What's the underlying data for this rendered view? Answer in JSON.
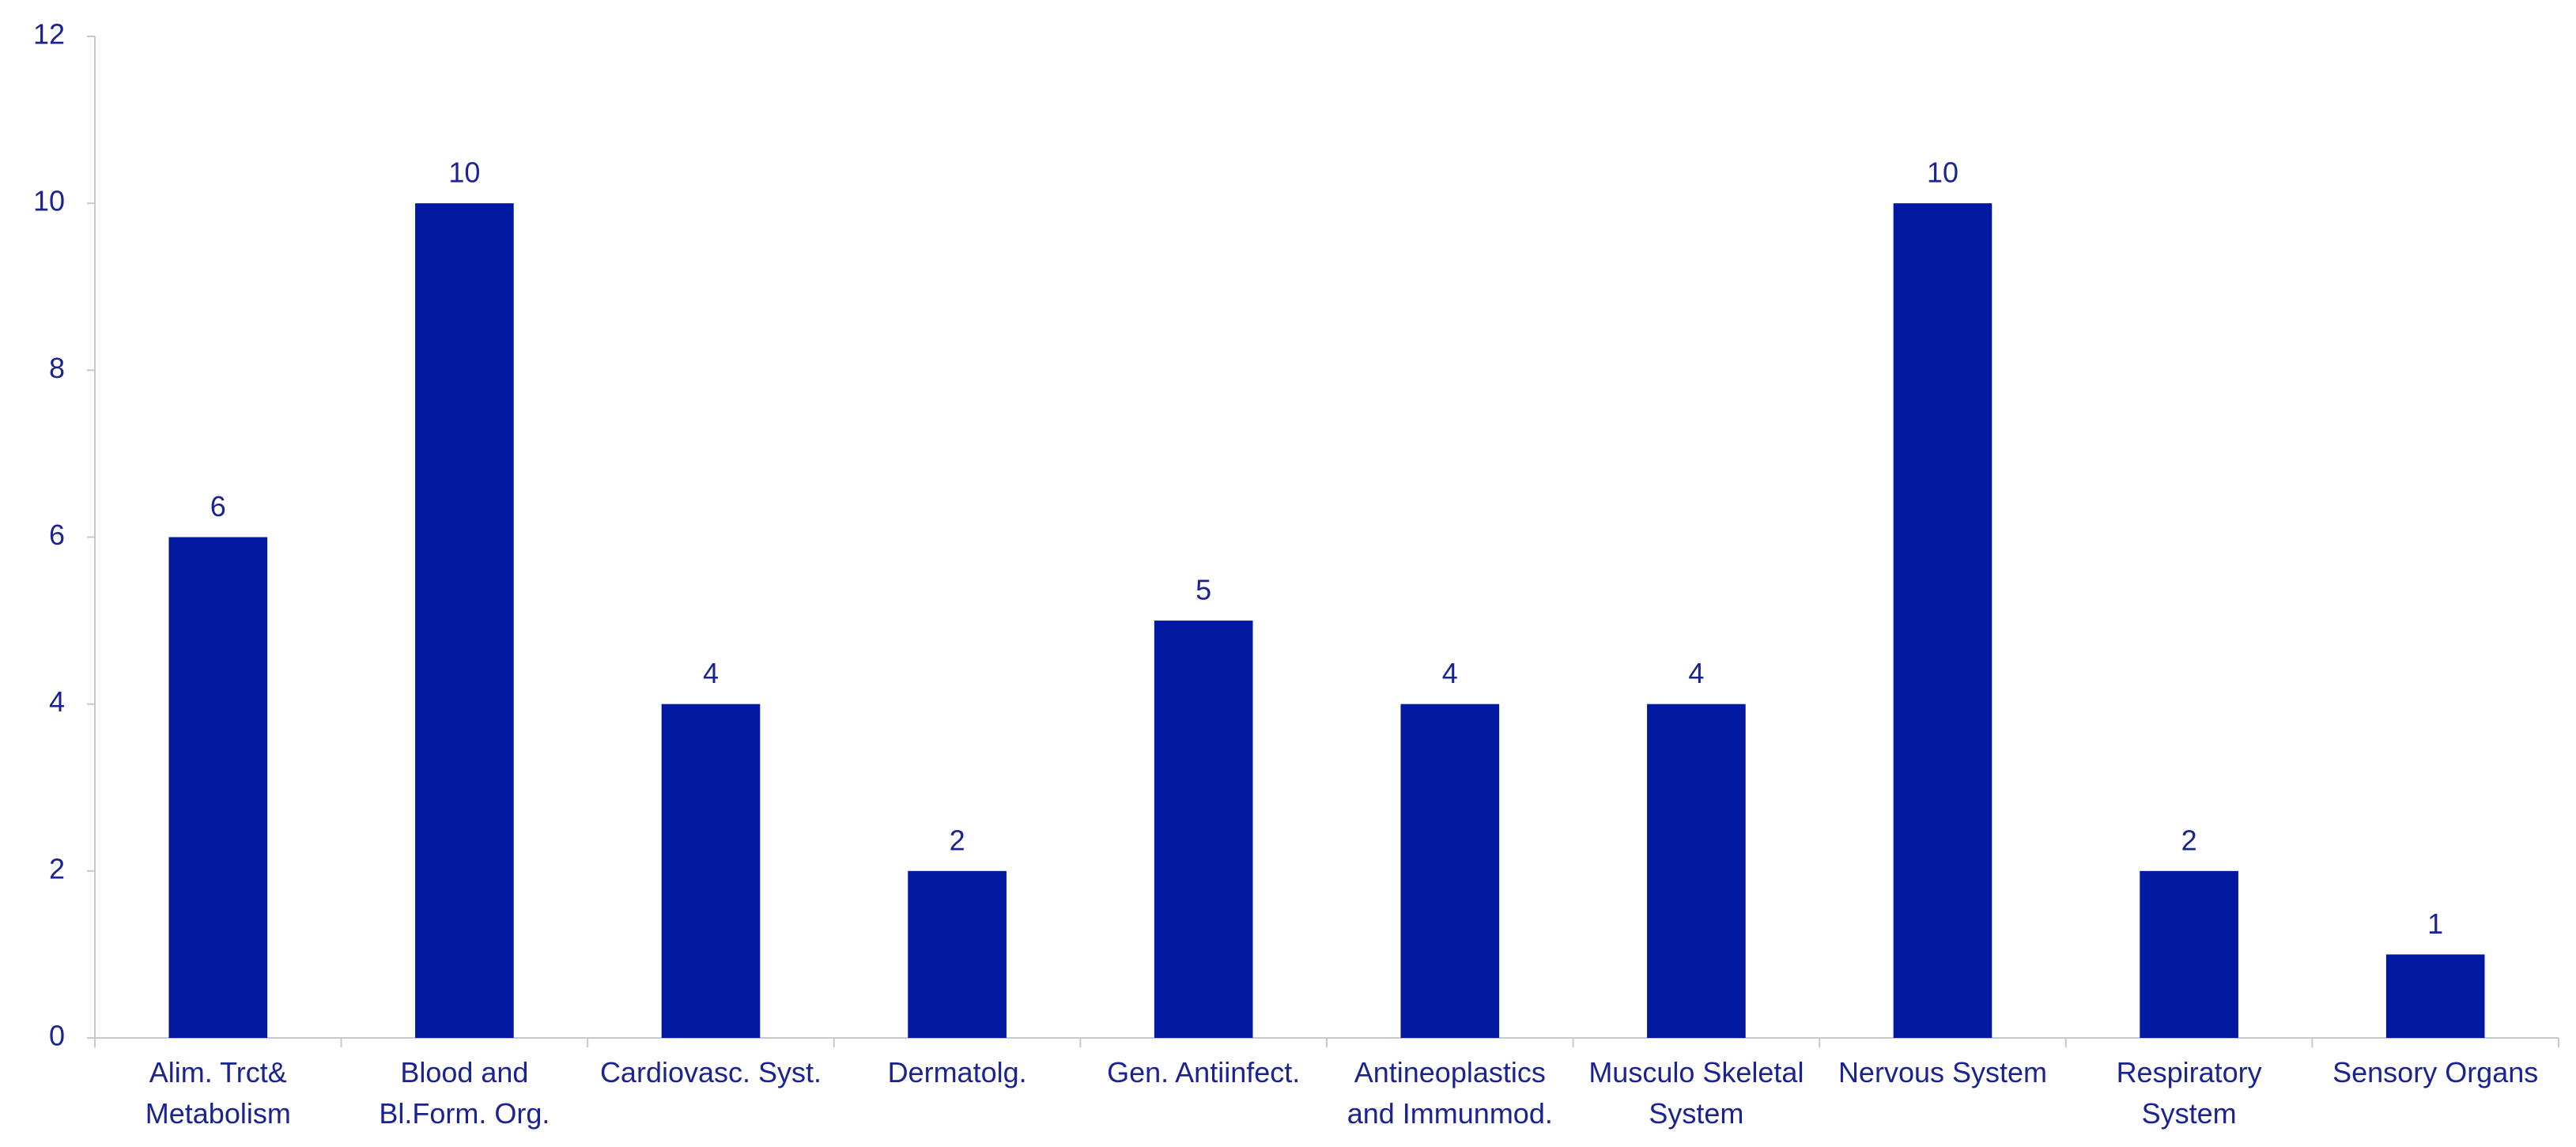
{
  "chart_data": {
    "type": "bar",
    "categories": [
      "Alim. Trct&\nMetabolism",
      "Blood and\nBl.Form. Org.",
      "Cardiovasc. Syst.",
      "Dermatolg.",
      "Gen. Antiinfect.",
      "Antineoplastics\nand Immunmod.",
      "Musculo Skeletal\nSystem",
      "Nervous System",
      "Respiratory\nSystem",
      "Sensory Organs"
    ],
    "values": [
      6,
      10,
      4,
      2,
      5,
      4,
      4,
      10,
      2,
      1
    ],
    "color": "#0019a0",
    "ylim": [
      0,
      12
    ],
    "yticks": [
      0,
      2,
      4,
      6,
      8,
      10,
      12
    ],
    "grid": false
  }
}
